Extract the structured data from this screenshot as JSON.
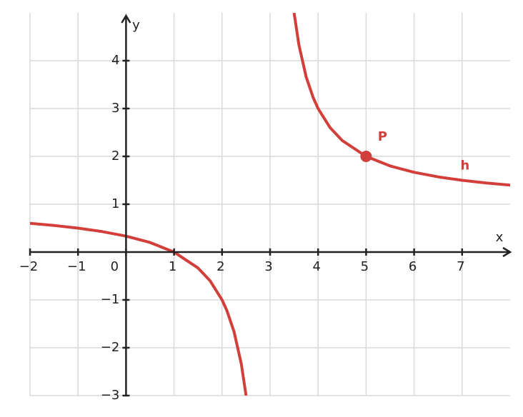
{
  "chart_data": {
    "type": "line",
    "x_label": "x",
    "y_label": "y",
    "xlim": [
      -2,
      8
    ],
    "ylim": [
      -3,
      5
    ],
    "xticks": [
      {
        "value": -2,
        "label": "−2"
      },
      {
        "value": -1,
        "label": "−1"
      },
      0,
      1,
      2,
      3,
      4,
      5,
      6,
      7
    ],
    "yticks": [
      {
        "value": -3,
        "label": "−3"
      },
      {
        "value": -2,
        "label": "−2"
      },
      {
        "value": -1,
        "label": "−1"
      },
      1,
      2,
      3,
      4
    ],
    "grid": true,
    "series": [
      {
        "name": "h",
        "color": "#d23f3a",
        "x": [
          -2,
          -1.5,
          -1,
          -0.5,
          0,
          0.5,
          1,
          1.5,
          1.75,
          2,
          2.1,
          2.25,
          2.4,
          2.5,
          3,
          3.5,
          3.6,
          3.75,
          3.9,
          4,
          4.25,
          4.5,
          5,
          5.5,
          6,
          6.5,
          7,
          7.5,
          8
        ],
        "values": [
          0.6,
          0.5556,
          0.5,
          0.4286,
          0.3333,
          0.2,
          0,
          -0.3333,
          -0.6,
          -1,
          -1.2222,
          -1.6667,
          -2.3333,
          -3,
          null,
          5,
          4.3333,
          3.6667,
          3.2222,
          3,
          2.6,
          2.3333,
          2,
          1.8,
          1.6667,
          1.5714,
          1.5,
          1.4444,
          1.4
        ]
      }
    ],
    "points": [
      {
        "label": "P",
        "x": 5,
        "y": 2,
        "color": "#d23f3a"
      }
    ]
  }
}
